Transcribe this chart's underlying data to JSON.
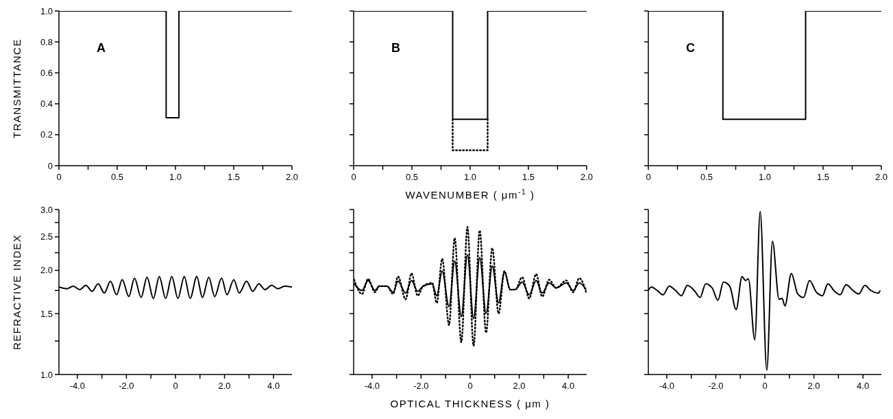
{
  "chart_data": [
    {
      "type": "step",
      "ylabel": "TRANSMITTANCE",
      "annotations": [
        "A"
      ],
      "xlim": [
        0,
        2
      ],
      "ylim": [
        0,
        1
      ],
      "xticks": [
        0,
        {
          "value": 0.25,
          "label": null
        },
        0.5,
        {
          "value": 0.75,
          "label": null
        },
        {
          "value": 1,
          "label": "1.0"
        },
        {
          "value": 1.25,
          "label": null
        },
        1.5,
        {
          "value": 1.75,
          "label": null
        },
        {
          "value": 2,
          "label": "2.0"
        }
      ],
      "yticks": [
        0,
        0.2,
        0.4,
        0.6,
        0.8,
        {
          "value": 1,
          "label": "1.0"
        }
      ],
      "series": [
        {
          "color": "#000000",
          "line_style": "solid",
          "x": [
            0,
            0.92,
            1.03,
            2
          ],
          "values": [
            1,
            0.31,
            1,
            1
          ]
        }
      ]
    },
    {
      "type": "step",
      "xlabel": "WAVENUMBER ( μm$^{-1}$ )",
      "annotations": [
        "B"
      ],
      "xlim": [
        0,
        2
      ],
      "ylim": [
        0,
        1
      ],
      "tick_labels": "x",
      "xticks": [
        0,
        {
          "value": 0.25,
          "label": null
        },
        0.5,
        {
          "value": 0.75,
          "label": null
        },
        {
          "value": 1,
          "label": "1.0"
        },
        {
          "value": 1.25,
          "label": null
        },
        1.5,
        {
          "value": 1.75,
          "label": null
        },
        {
          "value": 2,
          "label": "2.0"
        }
      ],
      "yticks": [
        0,
        0.2,
        0.4,
        0.6,
        0.8,
        1
      ],
      "series": [
        {
          "color": "#000000",
          "line_style": "solid",
          "x": [
            0,
            0.85,
            1.15,
            2
          ],
          "values": [
            1,
            0.3,
            1,
            1
          ]
        },
        {
          "color": "#000000",
          "line_style": "dotted",
          "x": [
            0.85,
            0.85,
            1.15
          ],
          "values": [
            0.3,
            0.1,
            0.3
          ]
        }
      ]
    },
    {
      "type": "step",
      "annotations": [
        "C"
      ],
      "xlim": [
        0,
        2
      ],
      "ylim": [
        0,
        1
      ],
      "tick_labels": "x",
      "xticks": [
        0,
        {
          "value": 0.25,
          "label": null
        },
        0.5,
        {
          "value": 0.75,
          "label": null
        },
        {
          "value": 1,
          "label": "1.0"
        },
        {
          "value": 1.25,
          "label": null
        },
        1.5,
        {
          "value": 1.75,
          "label": null
        },
        {
          "value": 2,
          "label": "2.0"
        }
      ],
      "yticks": [
        0,
        0.2,
        0.4,
        0.6,
        0.8,
        1
      ],
      "series": [
        {
          "color": "#000000",
          "line_style": "solid",
          "x": [
            0,
            0.64,
            1.35,
            2
          ],
          "values": [
            1,
            0.3,
            1,
            1
          ]
        }
      ]
    },
    {
      "type": "line",
      "ylabel": "REFRACTIVE INDEX",
      "log": "y",
      "xlim": [
        -4.75,
        4.75
      ],
      "ylim": [
        1,
        3
      ],
      "xticks": [
        {
          "value": -4,
          "label": "-4.0"
        },
        {
          "value": -3,
          "label": null
        },
        {
          "value": -2,
          "label": "-2.0"
        },
        {
          "value": -1,
          "label": null
        },
        0,
        {
          "value": 1,
          "label": null
        },
        {
          "value": 2,
          "label": "2.0"
        },
        {
          "value": 3,
          "label": null
        },
        {
          "value": 4,
          "label": "4.0"
        }
      ],
      "yticks": [
        {
          "value": 1,
          "label": "1.0"
        },
        {
          "value": 1.25,
          "label": null
        },
        1.5,
        {
          "value": 1.75,
          "label": null
        },
        {
          "value": 2,
          "label": "2.0"
        },
        {
          "value": 2.25,
          "label": null
        },
        2.5,
        {
          "value": 2.75,
          "label": null
        },
        {
          "value": 3,
          "label": "3.0"
        }
      ],
      "series": [
        {
          "color": "#000000",
          "line_style": "solid",
          "x": [
            -4.75,
            -4.43,
            -4.17,
            -3.9,
            -3.65,
            -3.4,
            -3.15,
            -2.9,
            -2.65,
            -2.4,
            -2.17,
            -1.9,
            -1.67,
            -1.4,
            -1.16,
            -0.9,
            -0.66,
            -0.4,
            -0.15,
            0.1,
            0.36,
            0.6,
            0.87,
            1.1,
            1.36,
            1.6,
            1.88,
            2.1,
            2.38,
            2.6,
            2.9,
            3.15,
            3.4,
            3.65,
            3.92,
            4.18,
            4.45,
            4.75
          ],
          "values": [
            1.79,
            1.77,
            1.8,
            1.76,
            1.81,
            1.74,
            1.83,
            1.72,
            1.86,
            1.7,
            1.88,
            1.68,
            1.9,
            1.67,
            1.91,
            1.66,
            1.92,
            1.66,
            1.92,
            1.66,
            1.92,
            1.66,
            1.92,
            1.67,
            1.91,
            1.68,
            1.9,
            1.7,
            1.88,
            1.72,
            1.86,
            1.74,
            1.83,
            1.76,
            1.81,
            1.77,
            1.8,
            1.79
          ]
        }
      ]
    },
    {
      "type": "line",
      "xlabel": "OPTICAL THICKNESS ( μm )",
      "log": "y",
      "xlim": [
        -4.75,
        4.75
      ],
      "ylim": [
        1,
        3
      ],
      "tick_labels": "x",
      "xticks": [
        {
          "value": -4,
          "label": "-4.0"
        },
        {
          "value": -3,
          "label": null
        },
        {
          "value": -2,
          "label": "-2.0"
        },
        {
          "value": -1,
          "label": null
        },
        0,
        {
          "value": 1,
          "label": null
        },
        {
          "value": 2,
          "label": "2.0"
        },
        {
          "value": 3,
          "label": null
        },
        {
          "value": 4,
          "label": "4.0"
        }
      ],
      "yticks": [
        1,
        1.25,
        1.5,
        1.75,
        2,
        2.25,
        2.5,
        2.75,
        3
      ],
      "series": [
        {
          "color": "#000000",
          "line_style": "solid",
          "x": [
            -4.73,
            -4.41,
            -4.16,
            -3.88,
            -3.71,
            -3.39,
            -3.14,
            -2.94,
            -2.63,
            -2.39,
            -2.14,
            -1.92,
            -1.55,
            -1.36,
            -1.14,
            -0.86,
            -0.63,
            -0.36,
            -0.11,
            0.14,
            0.39,
            0.65,
            0.9,
            1.16,
            1.4,
            1.63,
            1.84,
            2.12,
            2.41,
            2.69,
            2.94,
            3.22,
            3.51,
            3.92,
            4.2,
            4.45,
            4.73
          ],
          "values": [
            1.83,
            1.75,
            1.87,
            1.75,
            1.8,
            1.8,
            1.73,
            1.86,
            1.72,
            1.87,
            1.74,
            1.8,
            1.83,
            1.69,
            1.99,
            1.57,
            2.13,
            1.47,
            2.22,
            1.45,
            2.18,
            1.5,
            2.06,
            1.61,
            1.98,
            1.76,
            1.76,
            1.85,
            1.7,
            1.87,
            1.72,
            1.84,
            1.78,
            1.84,
            1.75,
            1.84,
            1.76
          ]
        },
        {
          "color": "#000000",
          "line_style": "dotted",
          "x": [
            -4.73,
            -4.41,
            -4.16,
            -3.88,
            -3.71,
            -3.39,
            -3.14,
            -2.94,
            -2.63,
            -2.39,
            -2.14,
            -1.92,
            -1.55,
            -1.36,
            -1.14,
            -0.86,
            -0.63,
            -0.36,
            -0.11,
            0.14,
            0.39,
            0.65,
            0.9,
            1.16,
            1.4,
            1.63,
            1.84,
            2.12,
            2.41,
            2.69,
            2.94,
            3.22,
            3.51,
            3.92,
            4.2,
            4.45,
            4.73
          ],
          "values": [
            1.88,
            1.71,
            1.89,
            1.73,
            1.8,
            1.8,
            1.71,
            1.92,
            1.65,
            1.96,
            1.69,
            1.8,
            1.84,
            1.61,
            2.16,
            1.39,
            2.48,
            1.24,
            2.67,
            1.21,
            2.61,
            1.32,
            2.32,
            1.5,
            1.99,
            1.76,
            1.76,
            1.91,
            1.66,
            1.95,
            1.68,
            1.88,
            1.78,
            1.87,
            1.73,
            1.9,
            1.73
          ]
        }
      ]
    },
    {
      "type": "line",
      "log": "y",
      "xlim": [
        -4.75,
        4.75
      ],
      "ylim": [
        1,
        3
      ],
      "tick_labels": "x",
      "xticks": [
        {
          "value": -4,
          "label": "-4.0"
        },
        {
          "value": -3,
          "label": null
        },
        {
          "value": -2,
          "label": "-2.0"
        },
        {
          "value": -1,
          "label": null
        },
        0,
        {
          "value": 1,
          "label": null
        },
        {
          "value": 2,
          "label": "2.0"
        },
        {
          "value": 3,
          "label": null
        },
        {
          "value": 4,
          "label": "4.0"
        }
      ],
      "yticks": [
        1,
        1.25,
        1.5,
        1.75,
        2,
        2.25,
        2.5,
        2.75,
        3
      ],
      "series": [
        {
          "color": "#000000",
          "line_style": "solid",
          "x": [
            -4.75,
            -4.63,
            -4.39,
            -4.15,
            -3.9,
            -3.64,
            -3.4,
            -3.16,
            -2.88,
            -2.64,
            -2.41,
            -2.15,
            -1.91,
            -1.69,
            -1.43,
            -1.17,
            -0.93,
            -0.79,
            -0.67,
            -0.41,
            -0.19,
            0.08,
            0.31,
            0.58,
            0.7,
            0.82,
            1.08,
            1.34,
            1.58,
            1.82,
            2.1,
            2.35,
            2.57,
            2.84,
            3.07,
            3.31,
            3.59,
            3.83,
            4.08,
            4.32,
            4.64,
            4.7
          ],
          "values": [
            1.75,
            1.79,
            1.75,
            1.7,
            1.8,
            1.75,
            1.69,
            1.81,
            1.75,
            1.67,
            1.83,
            1.78,
            1.64,
            1.85,
            1.8,
            1.54,
            1.92,
            1.87,
            1.89,
            1.26,
            2.96,
            1.03,
            2.43,
            1.65,
            1.66,
            1.58,
            1.96,
            1.71,
            1.67,
            1.87,
            1.73,
            1.69,
            1.83,
            1.74,
            1.7,
            1.82,
            1.75,
            1.71,
            1.81,
            1.75,
            1.72,
            1.75
          ]
        }
      ]
    }
  ]
}
